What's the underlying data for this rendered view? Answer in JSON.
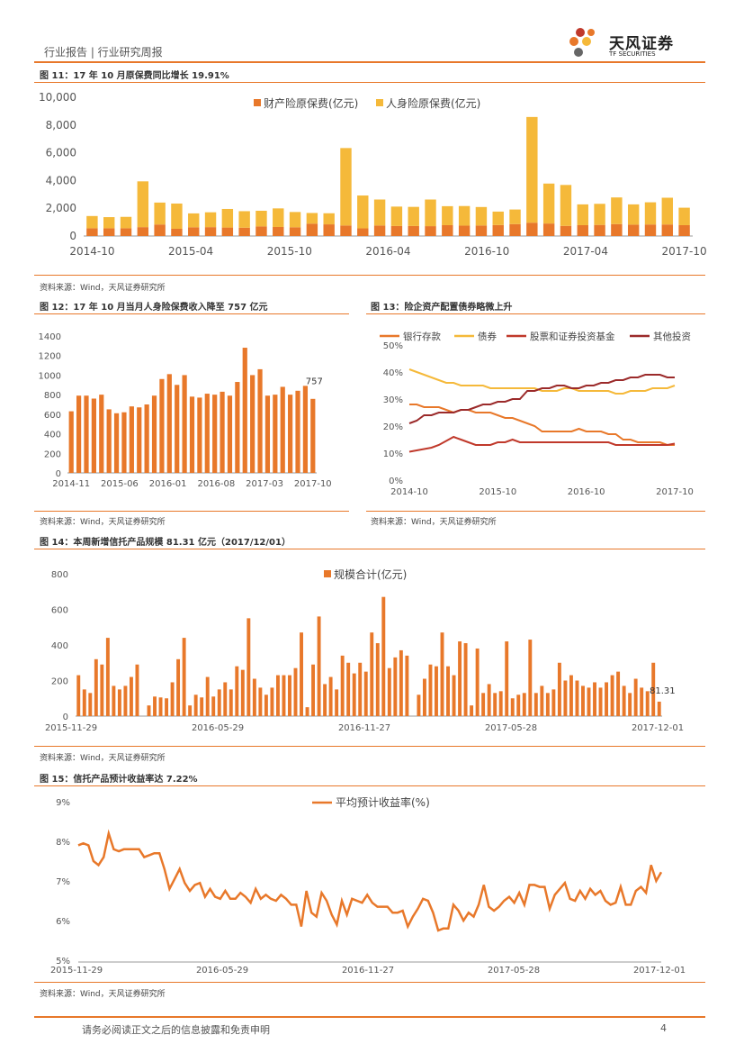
{
  "header": {
    "left": "行业报告 | 行业研究周报",
    "brand": "天风证券",
    "brand_en": "TF SECURITIES"
  },
  "footer": {
    "disclaimer": "请务必阅读正文之后的信息披露和免责申明",
    "page": "4"
  },
  "source_text": "资料来源：Wind，天风证券研究所",
  "colors": {
    "accent": "#e8782a",
    "orange": "#e8782a",
    "yellow": "#f5b93a",
    "dark_red": "#c0392b",
    "brown_red": "#9b2a2a"
  },
  "figures": {
    "f11": {
      "title": "图 11：17 年 10 月原保费同比增长 19.91%"
    },
    "f12": {
      "title": "图 12：17 年 10 月当月人身险保费收入降至 757 亿元"
    },
    "f13": {
      "title": "图 13：险企资产配置债券略微上升"
    },
    "f14": {
      "title": "图 14：本周新增信托产品规模 81.31 亿元（2017/12/01）"
    },
    "f15": {
      "title": "图 15：信托产品预计收益率达 7.22%"
    }
  },
  "chart_data": [
    {
      "id": "f11",
      "type": "bar",
      "stacked": true,
      "series": [
        {
          "name": "财产险原保费(亿元)",
          "values": [
            560,
            560,
            560,
            640,
            830,
            520,
            630,
            640,
            610,
            600,
            690,
            650,
            630,
            890,
            840,
            760,
            550,
            760,
            720,
            720,
            710,
            780,
            750,
            760,
            790,
            860,
            960,
            900,
            730,
            780,
            800,
            860,
            820,
            830,
            830,
            780
          ]
        },
        {
          "name": "人身险原保费(亿元)",
          "values": [
            880,
            800,
            820,
            3300,
            1580,
            1820,
            1000,
            1070,
            1340,
            1190,
            1130,
            1340,
            1100,
            770,
            800,
            5580,
            2370,
            1870,
            1400,
            1380,
            1920,
            1370,
            1410,
            1330,
            970,
            1050,
            7620,
            2880,
            2950,
            1500,
            1520,
            1920,
            1460,
            1600,
            1930,
            1260
          ]
        }
      ],
      "x_tick_labels": [
        "2014-10",
        "2015-04",
        "2015-10",
        "2016-04",
        "2016-10",
        "2017-04",
        "2017-10"
      ],
      "y_tick_labels": [
        "0",
        "2,000",
        "4,000",
        "6,000",
        "8,000",
        "10,000"
      ],
      "ylim": [
        0,
        10000
      ],
      "legend": "top-center"
    },
    {
      "id": "f12",
      "type": "bar",
      "series": [
        {
          "name": "人身险保费",
          "values": [
            630,
            790,
            790,
            760,
            800,
            650,
            610,
            620,
            680,
            670,
            700,
            790,
            960,
            1010,
            900,
            1000,
            780,
            770,
            810,
            800,
            830,
            790,
            930,
            1280,
            1000,
            1060,
            790,
            800,
            880,
            800,
            840,
            890,
            757
          ]
        }
      ],
      "x_tick_labels": [
        "2014-11",
        "2015-06",
        "2016-01",
        "2016-08",
        "2017-03",
        "2017-10"
      ],
      "y_tick_labels": [
        "0",
        "200",
        "400",
        "600",
        "800",
        "1000",
        "1200",
        "1400"
      ],
      "ylim": [
        0,
        1400
      ],
      "data_label": "757"
    },
    {
      "id": "f13",
      "type": "line",
      "series": [
        {
          "name": "银行存款",
          "values": [
            28,
            28,
            27,
            27,
            27,
            26,
            25,
            26,
            26,
            25,
            25,
            25,
            24,
            23,
            23,
            22,
            21,
            20,
            18,
            18,
            18,
            18,
            18,
            19,
            18,
            18,
            18,
            17,
            17,
            15,
            15,
            14,
            14,
            14,
            14,
            13,
            13
          ]
        },
        {
          "name": "债券",
          "values": [
            41,
            40,
            39,
            38,
            37,
            36,
            36,
            35,
            35,
            35,
            35,
            34,
            34,
            34,
            34,
            34,
            34,
            34,
            33,
            33,
            33,
            34,
            34,
            33,
            33,
            33,
            33,
            33,
            32,
            32,
            33,
            33,
            33,
            34,
            34,
            34,
            35
          ]
        },
        {
          "name": "股票和证券投资基金",
          "values": [
            10.5,
            11,
            11.5,
            12,
            13,
            14.5,
            16,
            15,
            14,
            13,
            13,
            13,
            14,
            14,
            15,
            14,
            14,
            14,
            14,
            14,
            14,
            14,
            14,
            14,
            14,
            14,
            14,
            14,
            13,
            13,
            13,
            13,
            13,
            13,
            13,
            13,
            13.5
          ]
        },
        {
          "name": "其他投资",
          "values": [
            21,
            22,
            24,
            24,
            25,
            25,
            25,
            26,
            26,
            27,
            28,
            28,
            29,
            29,
            30,
            30,
            33,
            33,
            34,
            34,
            35,
            35,
            34,
            34,
            35,
            35,
            36,
            36,
            37,
            37,
            38,
            38,
            39,
            39,
            39,
            38,
            38
          ]
        }
      ],
      "x_tick_labels": [
        "2014-10",
        "2015-10",
        "2016-10",
        "2017-10"
      ],
      "y_tick_labels": [
        "0%",
        "10%",
        "20%",
        "30%",
        "40%",
        "50%"
      ],
      "ylim": [
        0,
        50
      ],
      "legend": "top"
    },
    {
      "id": "f14",
      "type": "bar",
      "series": [
        {
          "name": "规模合计(亿元)",
          "values": [
            230,
            150,
            130,
            320,
            290,
            440,
            170,
            150,
            170,
            220,
            290,
            0,
            60,
            110,
            105,
            100,
            190,
            320,
            440,
            60,
            120,
            105,
            220,
            110,
            150,
            190,
            150,
            280,
            260,
            550,
            210,
            160,
            120,
            160,
            230,
            230,
            230,
            270,
            470,
            50,
            290,
            560,
            180,
            220,
            150,
            340,
            300,
            240,
            300,
            250,
            470,
            410,
            670,
            270,
            330,
            370,
            340,
            0,
            120,
            210,
            290,
            280,
            470,
            280,
            230,
            420,
            410,
            60,
            380,
            130,
            180,
            130,
            140,
            420,
            100,
            120,
            130,
            430,
            130,
            170,
            130,
            150,
            300,
            200,
            230,
            200,
            170,
            160,
            190,
            160,
            190,
            230,
            250,
            170,
            130,
            210,
            160,
            140,
            300,
            81.31
          ]
        }
      ],
      "x_tick_labels": [
        "2015-11-29",
        "2016-05-29",
        "2016-11-27",
        "2017-05-28",
        "2017-12-01"
      ],
      "y_tick_labels": [
        "0",
        "200",
        "400",
        "600",
        "800"
      ],
      "ylim": [
        0,
        800
      ],
      "data_label": "81.31",
      "legend": "top-center"
    },
    {
      "id": "f15",
      "type": "line",
      "series": [
        {
          "name": "平均预计收益率(%)",
          "values": [
            7.9,
            7.95,
            7.9,
            7.5,
            7.4,
            7.6,
            8.2,
            7.8,
            7.75,
            7.8,
            7.8,
            7.8,
            7.8,
            7.6,
            7.65,
            7.7,
            7.7,
            7.3,
            6.8,
            7.05,
            7.3,
            6.95,
            6.75,
            6.9,
            6.95,
            6.6,
            6.8,
            6.6,
            6.55,
            6.75,
            6.55,
            6.55,
            6.7,
            6.6,
            6.45,
            6.8,
            6.55,
            6.65,
            6.55,
            6.5,
            6.65,
            6.55,
            6.4,
            6.4,
            5.85,
            6.75,
            6.2,
            6.1,
            6.7,
            6.5,
            6.15,
            5.9,
            6.5,
            6.15,
            6.55,
            6.5,
            6.45,
            6.65,
            6.45,
            6.35,
            6.35,
            6.35,
            6.2,
            6.2,
            6.25,
            5.85,
            6.1,
            6.3,
            6.55,
            6.5,
            6.2,
            5.75,
            5.8,
            5.8,
            6.4,
            6.25,
            6.0,
            6.2,
            6.1,
            6.4,
            6.9,
            6.35,
            6.25,
            6.35,
            6.5,
            6.6,
            6.45,
            6.7,
            6.4,
            6.9,
            6.9,
            6.85,
            6.85,
            6.3,
            6.65,
            6.8,
            6.95,
            6.55,
            6.5,
            6.75,
            6.55,
            6.8,
            6.65,
            6.75,
            6.5,
            6.4,
            6.45,
            6.85,
            6.4,
            6.4,
            6.75,
            6.85,
            6.7,
            7.4,
            7.0,
            7.22
          ]
        }
      ],
      "x_tick_labels": [
        "2015-11-29",
        "2016-05-29",
        "2016-11-27",
        "2017-05-28",
        "2017-12-01"
      ],
      "y_tick_labels": [
        "5%",
        "6%",
        "7%",
        "8%",
        "9%"
      ],
      "ylim": [
        5,
        9
      ],
      "legend": "top-center"
    }
  ]
}
